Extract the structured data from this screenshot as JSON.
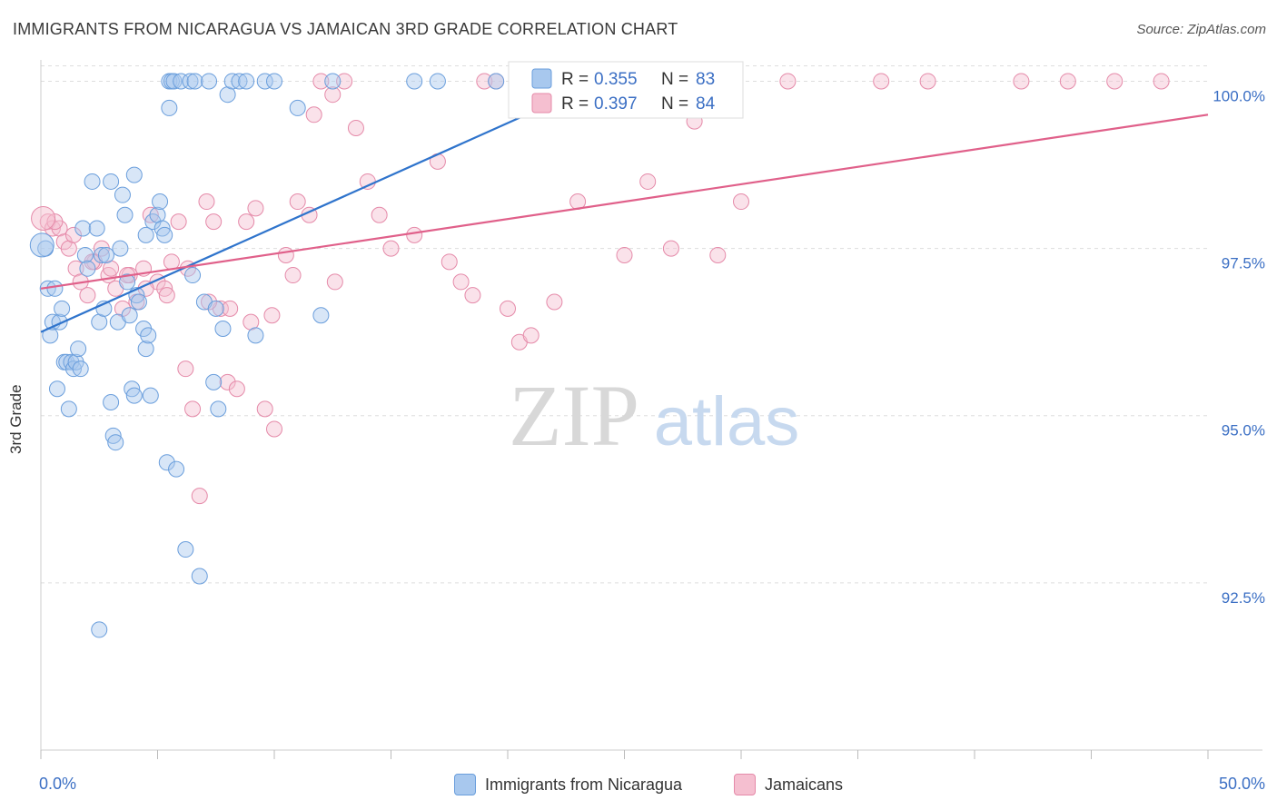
{
  "title": "IMMIGRANTS FROM NICARAGUA VS JAMAICAN 3RD GRADE CORRELATION CHART",
  "source": "Source: ZipAtlas.com",
  "watermark": {
    "zip": "ZIP",
    "atlas": "atlas"
  },
  "colors": {
    "blue_fill": "#a8c8ee",
    "blue_stroke": "#6a9edc",
    "blue_line": "#2f74cc",
    "pink_fill": "#f5bfd0",
    "pink_stroke": "#e58aa9",
    "pink_line": "#e0608a",
    "tick_text": "#3b6fc4",
    "grid": "#dddddd"
  },
  "chart_data": {
    "type": "scatter",
    "title": "IMMIGRANTS FROM NICARAGUA VS JAMAICAN 3RD GRADE CORRELATION CHART",
    "xlabel": "",
    "ylabel": "3rd Grade",
    "xlim": [
      0,
      50
    ],
    "ylim": [
      90.0,
      100.4
    ],
    "x_tick_labels": [
      "0.0%",
      "50.0%"
    ],
    "y_ticks": [
      92.5,
      95.0,
      97.5,
      100.0
    ],
    "y_tick_labels": [
      "92.5%",
      "95.0%",
      "97.5%",
      "100.0%"
    ],
    "grid": true,
    "legend_position": "top-center",
    "stats": [
      {
        "r_label": "R =",
        "r": "0.355",
        "n_label": "N =",
        "n": "83"
      },
      {
        "r_label": "R =",
        "r": "0.397",
        "n_label": "N =",
        "n": "84"
      }
    ],
    "series": [
      {
        "name": "Immigrants from Nicaragua",
        "color": "#6a9edc",
        "trendline": {
          "x": [
            0.0,
            24.0
          ],
          "y": [
            96.25,
            100.0
          ]
        },
        "x": [
          0.2,
          0.3,
          0.4,
          0.5,
          0.6,
          0.7,
          0.8,
          0.9,
          1.0,
          1.1,
          1.2,
          1.3,
          1.4,
          1.5,
          1.6,
          1.7,
          1.8,
          1.9,
          2.0,
          2.2,
          2.4,
          2.5,
          2.6,
          2.7,
          2.8,
          3.0,
          3.1,
          3.2,
          3.3,
          3.4,
          3.5,
          3.6,
          3.7,
          3.8,
          3.9,
          4.0,
          4.1,
          4.2,
          4.4,
          4.5,
          4.6,
          4.7,
          4.8,
          5.0,
          5.1,
          5.2,
          5.3,
          5.4,
          5.5,
          5.6,
          5.7,
          5.8,
          6.0,
          6.2,
          6.4,
          6.6,
          6.8,
          7.0,
          7.2,
          7.4,
          7.6,
          7.8,
          8.0,
          8.2,
          8.5,
          8.8,
          9.2,
          9.6,
          10.0,
          11.0,
          12.0,
          12.5,
          16.0,
          17.0,
          19.5,
          20.5,
          3.0,
          4.0,
          4.5,
          5.5,
          6.5,
          7.5,
          2.5
        ],
        "y": [
          97.5,
          96.9,
          96.2,
          96.4,
          96.9,
          95.4,
          96.4,
          96.6,
          95.8,
          95.8,
          95.1,
          95.8,
          95.7,
          95.8,
          96.0,
          95.7,
          97.8,
          97.4,
          97.2,
          98.5,
          97.8,
          96.4,
          97.4,
          96.6,
          97.4,
          95.2,
          94.7,
          94.6,
          96.4,
          97.5,
          98.3,
          98.0,
          97.0,
          96.5,
          95.4,
          95.3,
          96.8,
          96.7,
          96.3,
          96.0,
          96.2,
          95.3,
          97.9,
          98.0,
          98.2,
          97.8,
          97.7,
          94.3,
          100.0,
          100.0,
          100.0,
          94.2,
          100.0,
          93.0,
          100.0,
          100.0,
          92.6,
          96.7,
          100.0,
          95.5,
          95.1,
          96.3,
          99.8,
          100.0,
          100.0,
          100.0,
          96.2,
          100.0,
          100.0,
          99.6,
          96.5,
          100.0,
          100.0,
          100.0,
          100.0,
          99.6,
          98.5,
          98.6,
          97.7,
          99.6,
          97.1,
          96.6,
          91.8
        ]
      },
      {
        "name": "Jamaicans",
        "color": "#e58aa9",
        "trendline": {
          "x": [
            0.0,
            50.0
          ],
          "y": [
            96.9,
            99.5
          ]
        },
        "x": [
          0.3,
          0.5,
          0.8,
          1.0,
          1.2,
          1.5,
          1.7,
          2.0,
          2.3,
          2.6,
          2.9,
          3.2,
          3.5,
          3.8,
          4.1,
          4.4,
          4.7,
          5.0,
          5.3,
          5.6,
          5.9,
          6.2,
          6.5,
          6.8,
          7.1,
          7.4,
          7.7,
          8.0,
          8.4,
          8.8,
          9.2,
          9.6,
          10.0,
          10.5,
          11.0,
          11.5,
          12.0,
          12.5,
          13.0,
          13.5,
          14.0,
          14.5,
          15.0,
          16.0,
          17.0,
          17.5,
          18.0,
          18.5,
          19.0,
          19.5,
          20.0,
          20.5,
          21.0,
          22.0,
          23.0,
          24.0,
          25.0,
          26.0,
          27.0,
          28.0,
          29.0,
          30.0,
          32.0,
          36.0,
          38.0,
          42.0,
          44.0,
          46.0,
          48.0,
          0.6,
          1.4,
          2.2,
          3.0,
          3.7,
          4.5,
          5.4,
          6.3,
          7.2,
          8.1,
          9.0,
          9.9,
          10.8,
          11.7,
          12.6
        ],
        "y": [
          97.9,
          97.8,
          97.8,
          97.6,
          97.5,
          97.2,
          97.0,
          96.8,
          97.3,
          97.5,
          97.1,
          96.9,
          96.6,
          97.1,
          96.7,
          97.2,
          98.0,
          97.0,
          96.9,
          97.3,
          97.9,
          95.7,
          95.1,
          93.8,
          98.2,
          97.9,
          96.6,
          95.5,
          95.4,
          97.9,
          98.1,
          95.1,
          94.8,
          97.4,
          98.2,
          98.0,
          100.0,
          99.8,
          100.0,
          99.3,
          98.5,
          98.0,
          97.5,
          97.7,
          98.8,
          97.3,
          97.0,
          96.8,
          100.0,
          100.0,
          96.6,
          96.1,
          96.2,
          96.7,
          98.2,
          100.0,
          97.4,
          98.5,
          97.5,
          99.4,
          97.4,
          98.2,
          100.0,
          100.0,
          100.0,
          100.0,
          100.0,
          100.0,
          100.0,
          97.9,
          97.7,
          97.3,
          97.2,
          97.1,
          96.9,
          96.8,
          97.2,
          96.7,
          96.6,
          96.4,
          96.5,
          97.1,
          99.5,
          97.0
        ]
      }
    ]
  }
}
